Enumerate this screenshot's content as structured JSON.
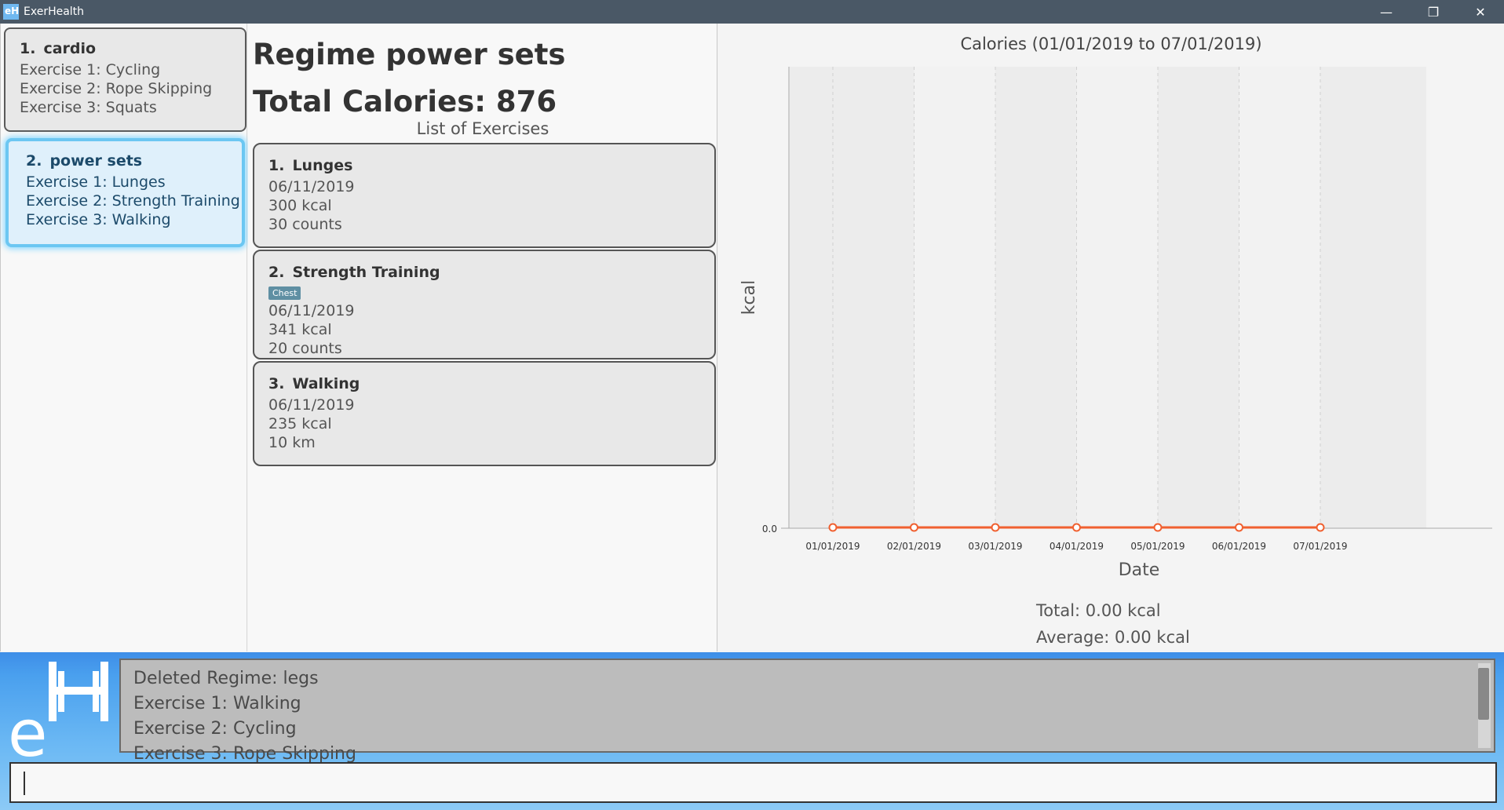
{
  "window": {
    "title": "ExerHealth",
    "minimize_glyph": "—",
    "restore_glyph": "❐",
    "close_glyph": "✕"
  },
  "regimes": [
    {
      "index": "1.",
      "name": "cardio",
      "exercises": [
        "Exercise 1: Cycling",
        "Exercise 2: Rope Skipping",
        "Exercise 3: Squats"
      ]
    },
    {
      "index": "2.",
      "name": "power sets",
      "exercises": [
        "Exercise 1: Lunges",
        "Exercise 2: Strength Training",
        "Exercise 3: Walking"
      ]
    }
  ],
  "regime_detail": {
    "title": "Regime power sets",
    "total_calories": "Total Calories: 876",
    "list_label": "List of Exercises",
    "exercises": [
      {
        "index": "1.",
        "name": "Lunges",
        "tag": "",
        "date": "06/11/2019",
        "calories": "300 kcal",
        "quantity": "30 counts"
      },
      {
        "index": "2.",
        "name": "Strength Training",
        "tag": "Chest",
        "date": "06/11/2019",
        "calories": "341 kcal",
        "quantity": "20 counts"
      },
      {
        "index": "3.",
        "name": "Walking",
        "tag": "",
        "date": "06/11/2019",
        "calories": "235 kcal",
        "quantity": "10 km"
      }
    ]
  },
  "chart_data": {
    "type": "line",
    "title": "Calories (01/01/2019 to 07/01/2019)",
    "xlabel": "Date",
    "ylabel": "kcal",
    "categories": [
      "01/01/2019",
      "02/01/2019",
      "03/01/2019",
      "04/01/2019",
      "05/01/2019",
      "06/01/2019",
      "07/01/2019"
    ],
    "values": [
      0,
      0,
      0,
      0,
      0,
      0,
      0
    ],
    "y_tick_labels": [
      "0.0"
    ],
    "series_color": "#f06030",
    "grid": true
  },
  "stats": {
    "total": "Total: 0.00 kcal",
    "average": "Average: 0.00 kcal"
  },
  "result_display": {
    "lines": [
      "Deleted Regime: legs",
      "Exercise 1: Walking",
      "Exercise 2: Cycling",
      "Exercise 3: Rope Skipping"
    ]
  },
  "command_box": {
    "value": ""
  }
}
